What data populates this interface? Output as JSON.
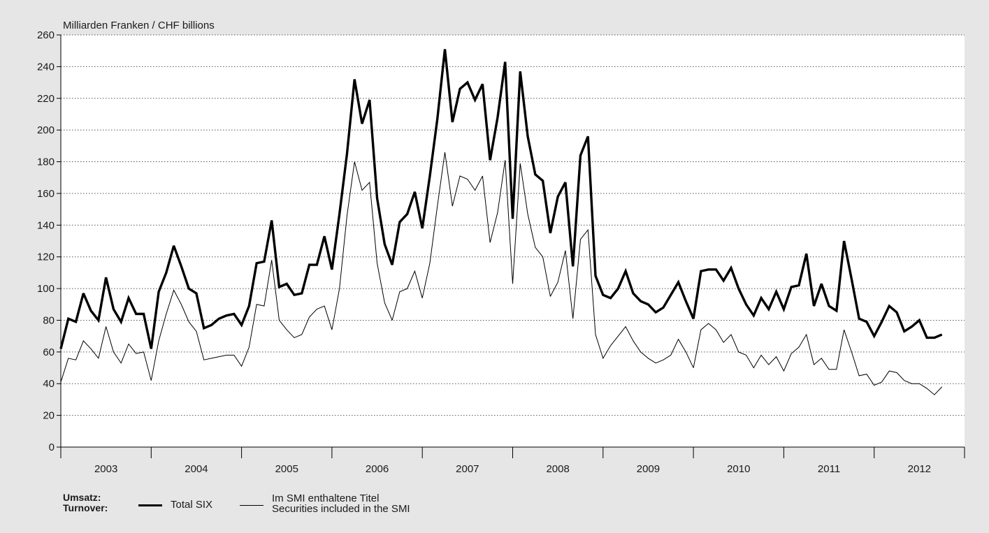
{
  "chart_data": {
    "type": "line",
    "unit_label": "Milliarden Franken / CHF billions",
    "ylim": [
      0,
      260
    ],
    "yticks": [
      0,
      20,
      40,
      60,
      80,
      100,
      120,
      140,
      160,
      180,
      200,
      220,
      240,
      260
    ],
    "xlim": [
      2003,
      2013
    ],
    "year_labels": [
      "2003",
      "2004",
      "2005",
      "2006",
      "2007",
      "2008",
      "2009",
      "2010",
      "2011",
      "2012"
    ],
    "grid": "horizontal dotted",
    "legend_position": "bottom-left",
    "legend_title": [
      "Umsatz:",
      "Turnover:"
    ],
    "series": [
      {
        "name": "Total SIX",
        "color": "#000000",
        "style": "thick",
        "values": [
          62,
          81,
          79,
          97,
          86,
          80,
          107,
          87,
          79,
          94,
          84,
          84,
          62,
          98,
          110,
          127,
          114,
          100,
          97,
          75,
          77,
          81,
          83,
          84,
          77,
          89,
          116,
          117,
          143,
          101,
          103,
          96,
          97,
          115,
          115,
          133,
          112,
          147,
          185,
          232,
          204,
          219,
          157,
          128,
          115,
          142,
          147,
          161,
          138,
          171,
          207,
          251,
          205,
          226,
          230,
          219,
          229,
          181,
          208,
          243,
          144,
          237,
          196,
          172,
          168,
          135,
          158,
          167,
          114,
          184,
          196,
          108,
          96,
          94,
          100,
          111,
          97,
          92,
          90,
          85,
          88,
          96,
          104,
          92,
          81,
          111,
          112,
          112,
          105,
          113,
          100,
          90,
          83,
          94,
          87,
          98,
          87,
          101,
          102,
          122,
          89,
          103,
          89,
          86,
          130,
          106,
          81,
          79,
          70,
          79,
          89,
          85,
          73,
          76,
          80,
          69,
          69,
          71
        ]
      },
      {
        "name": "Im SMI enthaltene Titel",
        "name_en": "Securities included in the SMI",
        "color": "#000000",
        "style": "thin",
        "values": [
          41,
          56,
          55,
          67,
          62,
          56,
          76,
          60,
          53,
          65,
          59,
          60,
          42,
          67,
          84,
          99,
          90,
          79,
          73,
          55,
          56,
          57,
          58,
          58,
          51,
          63,
          90,
          89,
          118,
          80,
          74,
          69,
          71,
          82,
          87,
          89,
          74,
          100,
          146,
          180,
          162,
          167,
          116,
          91,
          80,
          98,
          100,
          111,
          94,
          116,
          152,
          186,
          152,
          171,
          169,
          162,
          171,
          129,
          148,
          181,
          103,
          179,
          147,
          126,
          120,
          95,
          104,
          124,
          81,
          131,
          137,
          71,
          56,
          64,
          70,
          76,
          67,
          60,
          56,
          53,
          55,
          58,
          68,
          60,
          50,
          74,
          78,
          74,
          66,
          71,
          60,
          58,
          50,
          58,
          52,
          57,
          48,
          59,
          63,
          71,
          52,
          56,
          49,
          49,
          74,
          60,
          45,
          46,
          39,
          41,
          48,
          47,
          42,
          40,
          40,
          37,
          33,
          38
        ]
      }
    ]
  }
}
